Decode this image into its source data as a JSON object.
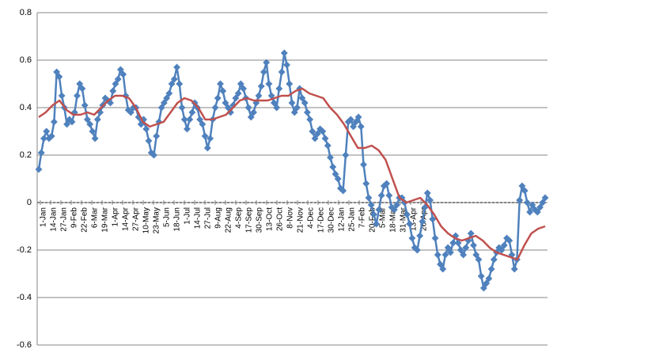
{
  "chart_data": {
    "type": "line",
    "title": "",
    "xlabel": "",
    "ylabel": "",
    "ylim": [
      -0.6,
      0.8
    ],
    "yticks": [
      "0.8",
      "0.6",
      "0.4",
      "0.2",
      "0",
      "-0.2",
      "-0.4",
      "-0.6"
    ],
    "ytick_values": [
      0.8,
      0.6,
      0.4,
      0.2,
      0,
      -0.2,
      -0.4,
      -0.6
    ],
    "grid": "horizontal",
    "legend": "none",
    "xtick_labels": [
      "1-Jan",
      "14-Jan",
      "27-Jan",
      "9-Feb",
      "22-Feb",
      "6-Mar",
      "19-Mar",
      "1-Apr",
      "14-Apr",
      "27-Apr",
      "10-May",
      "23-May",
      "5-Jun",
      "18-Jun",
      "1-Jul",
      "14-Jul",
      "27-Jul",
      "9-Aug",
      "22-Aug",
      "4-Sep",
      "17-Sep",
      "30-Sep",
      "13-Oct",
      "26-Oct",
      "8-Nov",
      "21-Nov",
      "4-Dec",
      "17-Dec",
      "30-Dec",
      "12-Jan",
      "25-Jan",
      "7-Feb",
      "20-Feb",
      "5-Mar",
      "18-Mar",
      "31-Mar",
      "13-Apr",
      "26-Apr"
    ],
    "series": [
      {
        "color": "#4f81bd",
        "marker": "diamond",
        "values": [
          0.14,
          0.21,
          0.27,
          0.3,
          0.27,
          0.28,
          0.34,
          0.55,
          0.53,
          0.45,
          0.4,
          0.33,
          0.35,
          0.34,
          0.38,
          0.45,
          0.5,
          0.48,
          0.41,
          0.35,
          0.33,
          0.3,
          0.27,
          0.35,
          0.38,
          0.41,
          0.44,
          0.43,
          0.42,
          0.47,
          0.5,
          0.52,
          0.56,
          0.54,
          0.45,
          0.39,
          0.38,
          0.4,
          0.4,
          0.36,
          0.33,
          0.35,
          0.31,
          0.26,
          0.21,
          0.2,
          0.28,
          0.34,
          0.4,
          0.42,
          0.44,
          0.46,
          0.5,
          0.52,
          0.57,
          0.5,
          0.4,
          0.35,
          0.31,
          0.35,
          0.38,
          0.42,
          0.4,
          0.35,
          0.33,
          0.28,
          0.23,
          0.27,
          0.35,
          0.4,
          0.44,
          0.5,
          0.47,
          0.42,
          0.4,
          0.38,
          0.41,
          0.44,
          0.46,
          0.5,
          0.48,
          0.44,
          0.4,
          0.36,
          0.38,
          0.42,
          0.45,
          0.49,
          0.55,
          0.59,
          0.5,
          0.45,
          0.42,
          0.4,
          0.48,
          0.55,
          0.63,
          0.58,
          0.5,
          0.42,
          0.38,
          0.4,
          0.48,
          0.44,
          0.42,
          0.38,
          0.35,
          0.3,
          0.27,
          0.29,
          0.31,
          0.3,
          0.27,
          0.24,
          0.19,
          0.15,
          0.12,
          0.1,
          0.06,
          0.05,
          0.2,
          0.34,
          0.35,
          0.32,
          0.34,
          0.36,
          0.32,
          0.16,
          0.08,
          0.02,
          -0.01,
          -0.05,
          -0.09,
          -0.03,
          0.03,
          0.07,
          0.08,
          0.03,
          -0.02,
          -0.03,
          -0.01,
          0.02,
          0.02,
          0.0,
          -0.05,
          -0.09,
          -0.15,
          -0.19,
          -0.2,
          -0.14,
          -0.08,
          -0.02,
          0.04,
          0.01,
          -0.07,
          -0.15,
          -0.22,
          -0.26,
          -0.28,
          -0.22,
          -0.19,
          -0.21,
          -0.17,
          -0.14,
          -0.17,
          -0.2,
          -0.22,
          -0.19,
          -0.16,
          -0.13,
          -0.18,
          -0.22,
          -0.24,
          -0.31,
          -0.36,
          -0.34,
          -0.32,
          -0.28,
          -0.24,
          -0.21,
          -0.19,
          -0.2,
          -0.18,
          -0.15,
          -0.16,
          -0.22,
          -0.28,
          -0.24,
          0.01,
          0.07,
          0.05,
          0.0,
          -0.04,
          -0.01,
          -0.03,
          -0.04,
          -0.02,
          0.0,
          0.02
        ]
      },
      {
        "color": "#c0504d",
        "marker": "none",
        "values": [
          0.36,
          0.38,
          0.41,
          0.43,
          0.39,
          0.37,
          0.37,
          0.38,
          0.37,
          0.4,
          0.43,
          0.45,
          0.45,
          0.44,
          0.4,
          0.34,
          0.32,
          0.33,
          0.34,
          0.38,
          0.42,
          0.44,
          0.43,
          0.4,
          0.35,
          0.35,
          0.36,
          0.37,
          0.4,
          0.43,
          0.44,
          0.43,
          0.43,
          0.43,
          0.44,
          0.45,
          0.45,
          0.47,
          0.48,
          0.46,
          0.45,
          0.44,
          0.4,
          0.37,
          0.33,
          0.28,
          0.23,
          0.23,
          0.24,
          0.22,
          0.18,
          0.1,
          0.02,
          0.0,
          0.01,
          0.02,
          -0.01,
          -0.05,
          -0.1,
          -0.13,
          -0.15,
          -0.16,
          -0.15,
          -0.14,
          -0.16,
          -0.19,
          -0.21,
          -0.22,
          -0.23,
          -0.24,
          -0.18,
          -0.13,
          -0.11,
          -0.1
        ]
      }
    ]
  }
}
